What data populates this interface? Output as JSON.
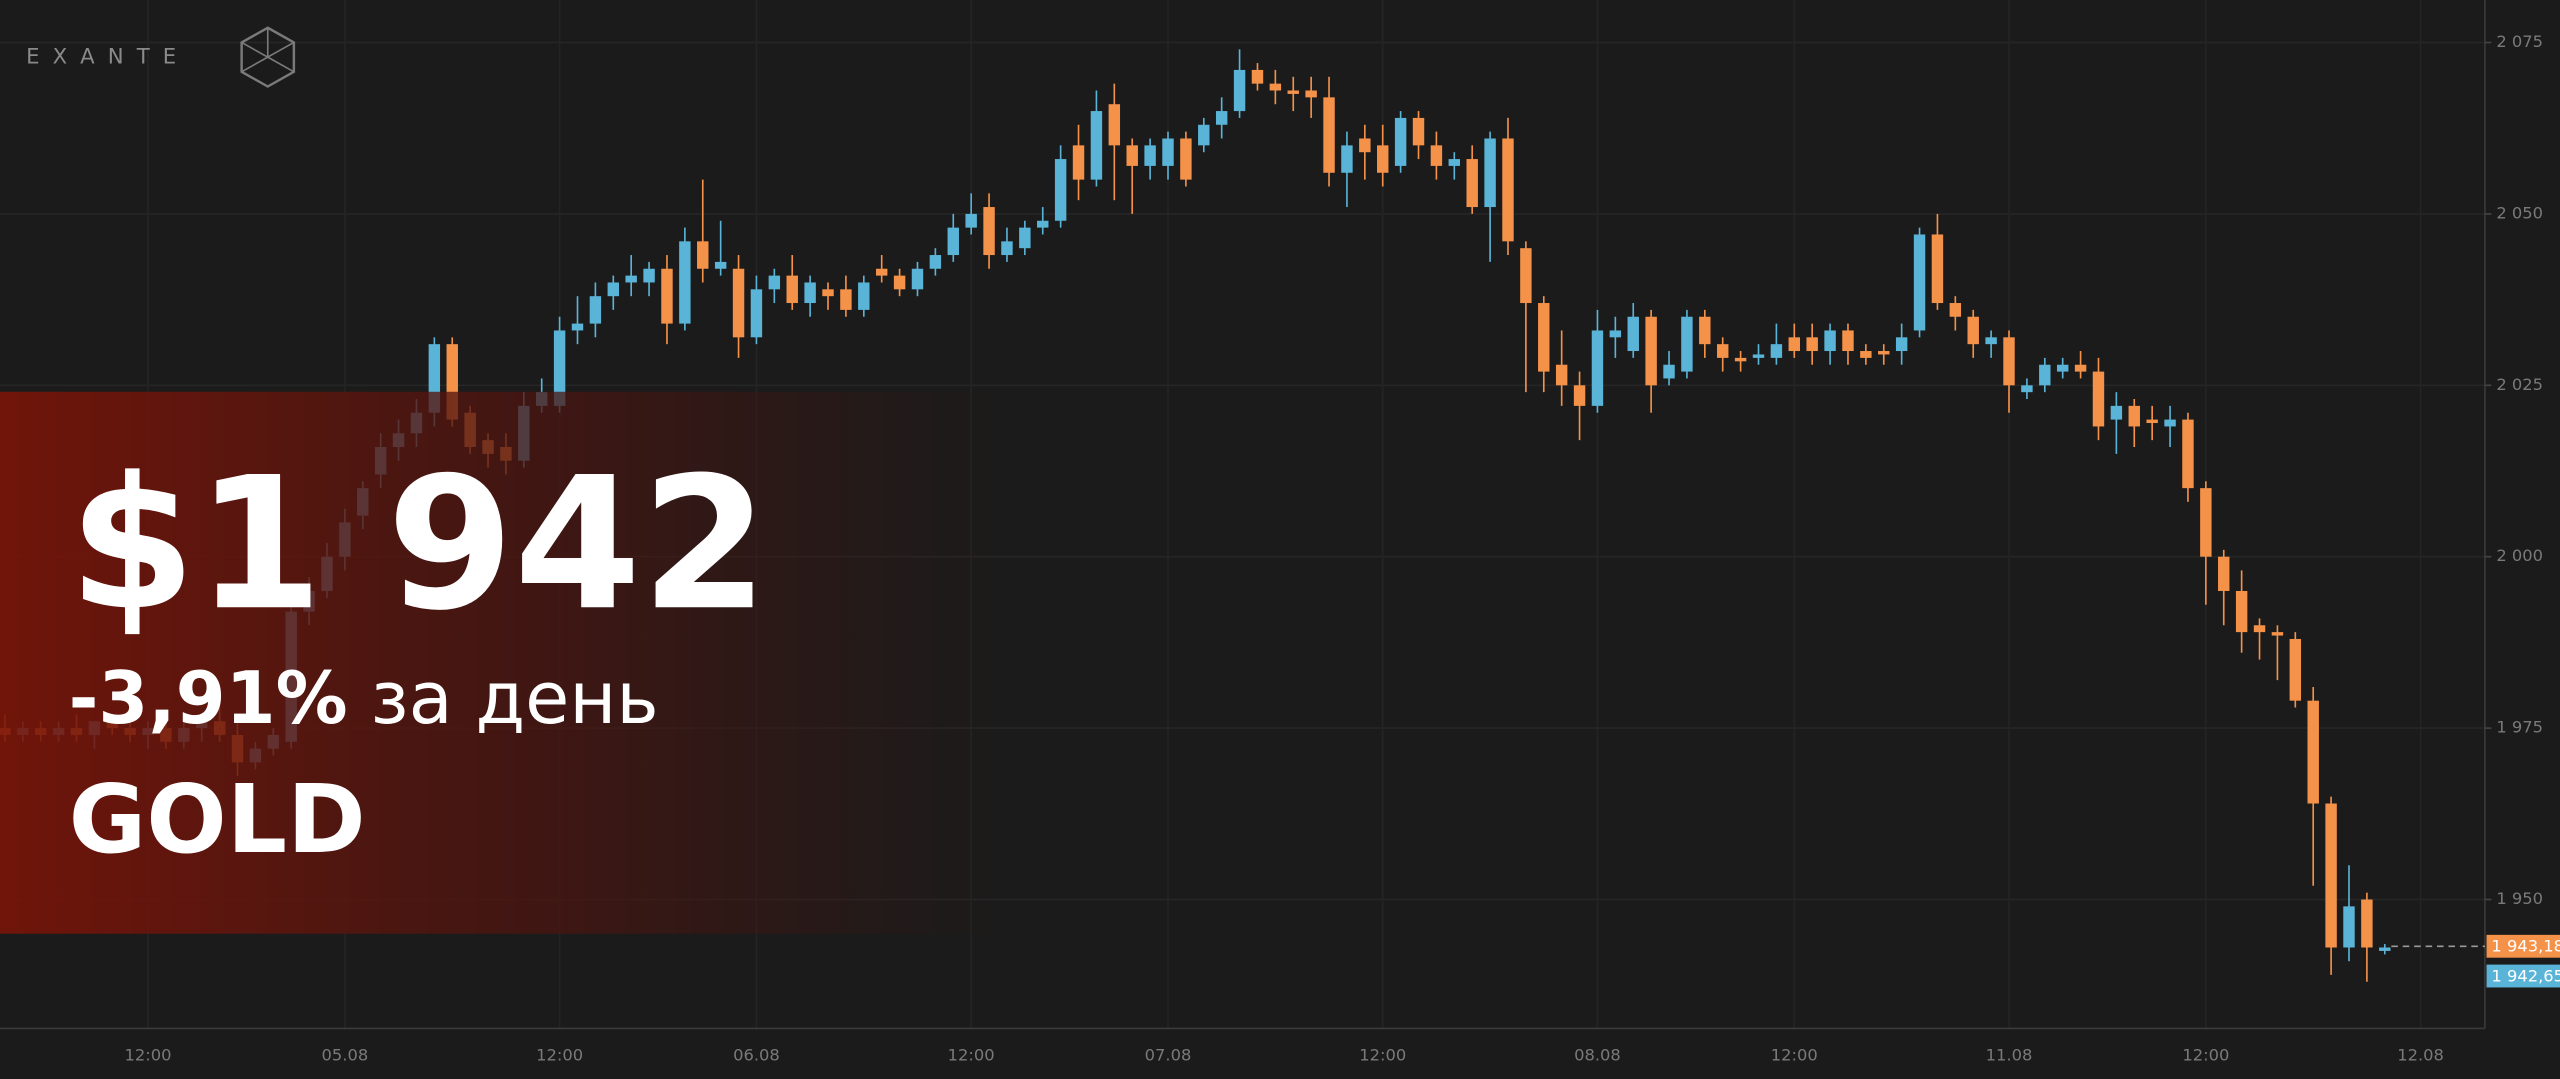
{
  "chart_data": {
    "type": "candlestick",
    "up_color": "#5ab4d8",
    "down_color": "#f5924a",
    "grid": true,
    "ylim": [
      1931.2,
      2081.2
    ],
    "yticks": [
      {
        "value": 1950,
        "label": "1 950"
      },
      {
        "value": 1975,
        "label": "1 975"
      },
      {
        "value": 2000,
        "label": "2 000"
      },
      {
        "value": 2025,
        "label": "2 025"
      },
      {
        "value": 2050,
        "label": "2 050"
      },
      {
        "value": 2075,
        "label": "2 075"
      }
    ],
    "categories": [
      null,
      null,
      null,
      null,
      null,
      null,
      null,
      null,
      "12:00",
      null,
      null,
      null,
      null,
      null,
      null,
      null,
      null,
      null,
      null,
      "05.08",
      null,
      null,
      null,
      null,
      null,
      null,
      null,
      null,
      null,
      null,
      null,
      "12:00",
      null,
      null,
      null,
      null,
      null,
      null,
      null,
      null,
      null,
      null,
      "06.08",
      null,
      null,
      null,
      null,
      null,
      null,
      null,
      null,
      null,
      null,
      null,
      "12:00",
      null,
      null,
      null,
      null,
      null,
      null,
      null,
      null,
      null,
      null,
      "07.08",
      null,
      null,
      null,
      null,
      null,
      null,
      null,
      null,
      null,
      null,
      null,
      "12:00",
      null,
      null,
      null,
      null,
      null,
      null,
      null,
      null,
      null,
      null,
      null,
      "08.08",
      null,
      null,
      null,
      null,
      null,
      null,
      null,
      null,
      null,
      null,
      "12:00",
      null,
      null,
      null,
      null,
      null,
      null,
      null,
      null,
      null,
      null,
      null,
      "11.08",
      null,
      null,
      null,
      null,
      null,
      null,
      null,
      null,
      null,
      null,
      "12:00",
      null,
      null,
      null,
      null,
      null,
      null,
      null,
      null,
      null,
      null,
      null,
      "12.08"
    ],
    "candles": [
      [
        1975,
        1977,
        1973,
        1974
      ],
      [
        1974,
        1976,
        1973,
        1975
      ],
      [
        1975,
        1976,
        1973,
        1974
      ],
      [
        1974,
        1976,
        1973,
        1975
      ],
      [
        1975,
        1977,
        1973,
        1974
      ],
      [
        1974,
        1976,
        1972,
        1976
      ],
      [
        1976,
        1977,
        1974,
        1975
      ],
      [
        1975,
        1977,
        1973,
        1974
      ],
      [
        1974,
        1976,
        1972,
        1975
      ],
      [
        1975,
        1977,
        1972,
        1973
      ],
      [
        1973,
        1976,
        1972,
        1975
      ],
      [
        1975,
        1977,
        1973,
        1976
      ],
      [
        1976,
        1978,
        1973,
        1974
      ],
      [
        1974,
        1976,
        1968,
        1970
      ],
      [
        1970,
        1973,
        1969,
        1972
      ],
      [
        1972,
        1975,
        1971,
        1974
      ],
      [
        1973,
        1994,
        1972,
        1992
      ],
      [
        1992,
        1997,
        1990,
        1995
      ],
      [
        1995,
        2002,
        1994,
        2000
      ],
      [
        2000,
        2007,
        1998,
        2005
      ],
      [
        2006,
        2011,
        2004,
        2010
      ],
      [
        2012,
        2018,
        2010,
        2016
      ],
      [
        2016,
        2020,
        2014,
        2018
      ],
      [
        2018,
        2023,
        2016,
        2021
      ],
      [
        2021,
        2032,
        2019,
        2031
      ],
      [
        2031,
        2032,
        2019,
        2020
      ],
      [
        2021,
        2022,
        2015,
        2016
      ],
      [
        2017,
        2018,
        2013,
        2015
      ],
      [
        2016,
        2018,
        2012,
        2014
      ],
      [
        2014,
        2024,
        2013,
        2022
      ],
      [
        2022,
        2026,
        2021,
        2024
      ],
      [
        2022,
        2035,
        2021,
        2033
      ],
      [
        2033,
        2038,
        2031,
        2034
      ],
      [
        2034,
        2040,
        2032,
        2038
      ],
      [
        2038,
        2041,
        2036,
        2040
      ],
      [
        2040,
        2044,
        2038,
        2041
      ],
      [
        2040,
        2043,
        2038,
        2042
      ],
      [
        2042,
        2044,
        2031,
        2034
      ],
      [
        2034,
        2048,
        2033,
        2046
      ],
      [
        2046,
        2055,
        2040,
        2042
      ],
      [
        2042,
        2049,
        2041,
        2043
      ],
      [
        2042,
        2044,
        2029,
        2032
      ],
      [
        2032,
        2041,
        2031,
        2039
      ],
      [
        2039,
        2042,
        2037,
        2041
      ],
      [
        2041,
        2044,
        2036,
        2037
      ],
      [
        2037,
        2041,
        2035,
        2040
      ],
      [
        2039,
        2040,
        2036,
        2038
      ],
      [
        2039,
        2041,
        2035,
        2036
      ],
      [
        2036,
        2041,
        2035,
        2040
      ],
      [
        2042,
        2044,
        2040,
        2041
      ],
      [
        2041,
        2042,
        2038,
        2039
      ],
      [
        2039,
        2043,
        2038,
        2042
      ],
      [
        2042,
        2045,
        2041,
        2044
      ],
      [
        2044,
        2050,
        2043,
        2048
      ],
      [
        2048,
        2053,
        2047,
        2050
      ],
      [
        2051,
        2053,
        2042,
        2044
      ],
      [
        2044,
        2048,
        2043,
        2046
      ],
      [
        2045,
        2049,
        2044,
        2048
      ],
      [
        2048,
        2051,
        2047,
        2049
      ],
      [
        2049,
        2060,
        2048,
        2058
      ],
      [
        2060,
        2063,
        2052,
        2055
      ],
      [
        2055,
        2068,
        2054,
        2065
      ],
      [
        2066,
        2069,
        2052,
        2060
      ],
      [
        2060,
        2061,
        2050,
        2057
      ],
      [
        2057,
        2061,
        2055,
        2060
      ],
      [
        2057,
        2062,
        2055,
        2061
      ],
      [
        2061,
        2062,
        2054,
        2055
      ],
      [
        2060,
        2064,
        2059,
        2063
      ],
      [
        2063,
        2067,
        2061,
        2065
      ],
      [
        2065,
        2074,
        2064,
        2071
      ],
      [
        2071,
        2072,
        2068,
        2069
      ],
      [
        2069,
        2071,
        2066,
        2068
      ],
      [
        2068,
        2070,
        2065,
        2067.5
      ],
      [
        2068,
        2070,
        2064,
        2067
      ],
      [
        2067,
        2070,
        2054,
        2056
      ],
      [
        2056,
        2062,
        2051,
        2060
      ],
      [
        2061,
        2063,
        2055,
        2059
      ],
      [
        2060,
        2063,
        2054,
        2056
      ],
      [
        2057,
        2065,
        2056,
        2064
      ],
      [
        2064,
        2065,
        2058,
        2060
      ],
      [
        2060,
        2062,
        2055,
        2057
      ],
      [
        2057,
        2059,
        2055,
        2058
      ],
      [
        2058,
        2060,
        2050,
        2051
      ],
      [
        2051,
        2062,
        2043,
        2061
      ],
      [
        2061,
        2064,
        2044,
        2046
      ],
      [
        2045,
        2046,
        2024,
        2037
      ],
      [
        2037,
        2038,
        2024,
        2027
      ],
      [
        2028,
        2033,
        2022,
        2025
      ],
      [
        2025,
        2027,
        2017,
        2022
      ],
      [
        2022,
        2036,
        2021,
        2033
      ],
      [
        2032,
        2035,
        2029,
        2033
      ],
      [
        2030,
        2037,
        2029,
        2035
      ],
      [
        2035,
        2036,
        2021,
        2025
      ],
      [
        2026,
        2030,
        2025,
        2028
      ],
      [
        2027,
        2036,
        2026,
        2035
      ],
      [
        2035,
        2036,
        2029,
        2031
      ],
      [
        2031,
        2032,
        2027,
        2029
      ],
      [
        2029,
        2030,
        2027,
        2028.5
      ],
      [
        2029,
        2031,
        2028,
        2029.5
      ],
      [
        2029,
        2034,
        2028,
        2031
      ],
      [
        2032,
        2034,
        2029,
        2030
      ],
      [
        2032,
        2034,
        2028,
        2030
      ],
      [
        2030,
        2034,
        2028,
        2033
      ],
      [
        2033,
        2034,
        2028,
        2030
      ],
      [
        2030,
        2031,
        2028,
        2029
      ],
      [
        2030,
        2031,
        2028,
        2029.5
      ],
      [
        2030,
        2034,
        2028,
        2032
      ],
      [
        2033,
        2048,
        2032,
        2047
      ],
      [
        2047,
        2050,
        2036,
        2037
      ],
      [
        2037,
        2038,
        2033,
        2035
      ],
      [
        2035,
        2036,
        2029,
        2031
      ],
      [
        2031,
        2033,
        2029,
        2032
      ],
      [
        2032,
        2033,
        2021,
        2025
      ],
      [
        2024,
        2026,
        2023,
        2025
      ],
      [
        2025,
        2029,
        2024,
        2028
      ],
      [
        2027,
        2029,
        2026,
        2028
      ],
      [
        2028,
        2030,
        2026,
        2027
      ],
      [
        2027,
        2029,
        2017,
        2019
      ],
      [
        2020,
        2024,
        2015,
        2022
      ],
      [
        2022,
        2023,
        2016,
        2019
      ],
      [
        2020,
        2022,
        2017,
        2019.5
      ],
      [
        2019,
        2022,
        2016,
        2020
      ],
      [
        2020,
        2021,
        2008,
        2010
      ],
      [
        2010,
        2011,
        1993,
        2000
      ],
      [
        2000,
        2001,
        1990,
        1995
      ],
      [
        1995,
        1998,
        1986,
        1989
      ],
      [
        1990,
        1991,
        1985,
        1989
      ],
      [
        1989,
        1990,
        1982,
        1988.5
      ],
      [
        1988,
        1989,
        1978,
        1979
      ],
      [
        1979,
        1981,
        1952,
        1964
      ],
      [
        1964,
        1965,
        1939,
        1943
      ],
      [
        1943,
        1955,
        1941,
        1949
      ],
      [
        1950,
        1951,
        1938,
        1943
      ],
      [
        1942.5,
        1943.5,
        1942,
        1943
      ],
      null,
      null
    ],
    "last_prices": [
      {
        "value": 1943.18,
        "label": "1 943,18",
        "color": "#f5924a"
      },
      {
        "value": 1942.65,
        "label": "1 942,65",
        "color": "#5ab4d8"
      }
    ]
  },
  "overlay": {
    "logo": "EXANTE",
    "price": "$1 942",
    "change": "-3,91%",
    "change_suffix": "за день",
    "asset": "GOLD"
  }
}
